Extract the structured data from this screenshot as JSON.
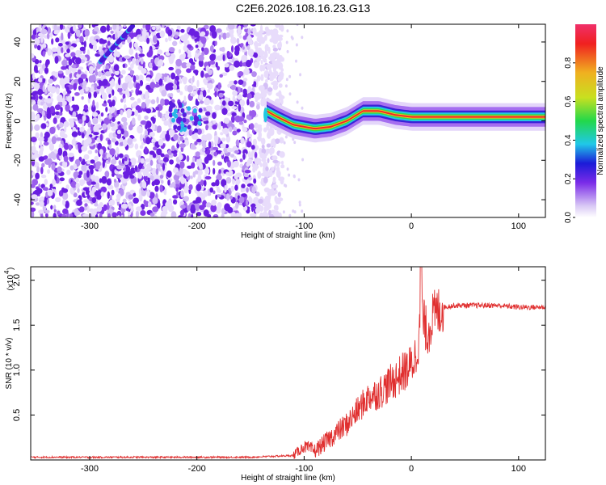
{
  "title": "C2E6.2026.108.16.23.G13",
  "chart_data": [
    {
      "type": "heatmap",
      "xlabel": "Height of straight line (km)",
      "ylabel": "Frequency (Hz)",
      "xlim": [
        -355,
        125
      ],
      "ylim": [
        -49,
        49
      ],
      "xticks": [
        -300,
        -200,
        -100,
        0,
        100
      ],
      "yticks": [
        -40,
        -20,
        0,
        20,
        40
      ],
      "colorbar": {
        "label": "Normalized spectral amplitude",
        "range": [
          0.0,
          1.0
        ],
        "ticks": [
          "0.0",
          "0.2",
          "0.4",
          "0.6",
          "0.8"
        ]
      },
      "ridge": {
        "description_points_x": [
          -135,
          -125,
          -110,
          -90,
          -75,
          -60,
          -45,
          -30,
          -15,
          0,
          20,
          60,
          100,
          125
        ],
        "description_points_y": [
          5,
          2,
          -2,
          -4,
          -3,
          0,
          5,
          5,
          3,
          2,
          2,
          2,
          2,
          2
        ]
      }
    },
    {
      "type": "line",
      "xlabel": "Height of straight line (km)",
      "ylabel": "SNR (10 * v/v)",
      "y_multiplier_label": "(x10",
      "y_multiplier_exp": "4",
      "y_multiplier_close": ")",
      "xlim": [
        -355,
        125
      ],
      "ylim": [
        0,
        2.15
      ],
      "xticks": [
        -300,
        -200,
        -100,
        0,
        100
      ],
      "yticks": [
        0.5,
        1.0,
        1.5,
        2.0
      ],
      "series": [
        {
          "color": "#e03030",
          "x": [
            -355,
            -300,
            -200,
            -150,
            -110,
            -100,
            -90,
            -75,
            -60,
            -50,
            -40,
            -30,
            -20,
            -10,
            0,
            5,
            10,
            15,
            20,
            25,
            30,
            40,
            60,
            80,
            100,
            110,
            125
          ],
          "y": [
            0.03,
            0.03,
            0.03,
            0.03,
            0.05,
            0.15,
            0.1,
            0.25,
            0.4,
            0.55,
            0.7,
            0.75,
            0.85,
            0.95,
            1.05,
            1.2,
            1.6,
            1.4,
            1.6,
            1.65,
            1.7,
            1.72,
            1.72,
            1.72,
            1.7,
            1.7,
            1.7
          ]
        }
      ]
    }
  ]
}
